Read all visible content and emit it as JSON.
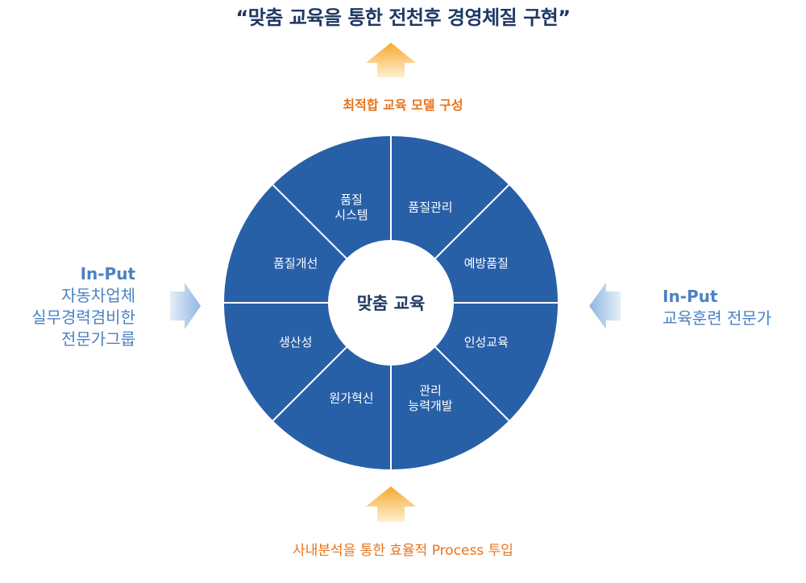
{
  "title": "“맞춤 교육을 통한 전천후 경영체질 구현”",
  "output_label": "최적합 교육 모델 구성",
  "bottom_input_label": "사내분석을 통한 효율적 Process 투입",
  "left_input": {
    "head": "In-Put",
    "lines": [
      "자동차업체",
      "실무경력겸비한",
      "전문가그룹"
    ]
  },
  "right_input": {
    "head": "In-Put",
    "lines": [
      "교육훈련 전문가"
    ]
  },
  "center": "맞춤 교육",
  "segments": [
    [
      "품질관리"
    ],
    [
      "예방품질"
    ],
    [
      "인성교육"
    ],
    [
      "관리",
      "능력개발"
    ],
    [
      "원가혁신"
    ],
    [
      "생산성"
    ],
    [
      "품질개선"
    ],
    [
      "품질",
      "시스템"
    ]
  ],
  "colors": {
    "segment": "#2860a8",
    "divider": "#ffffff",
    "title": "#1f3864",
    "accent_orange": "#e8731a",
    "side_blue": "#4a82c2",
    "arrow_up_top": "#f8a830",
    "arrow_up_bottom": "#fde9bd",
    "arrow_side_dark": "#9cc0e6",
    "arrow_side_light": "#e4eff9"
  }
}
